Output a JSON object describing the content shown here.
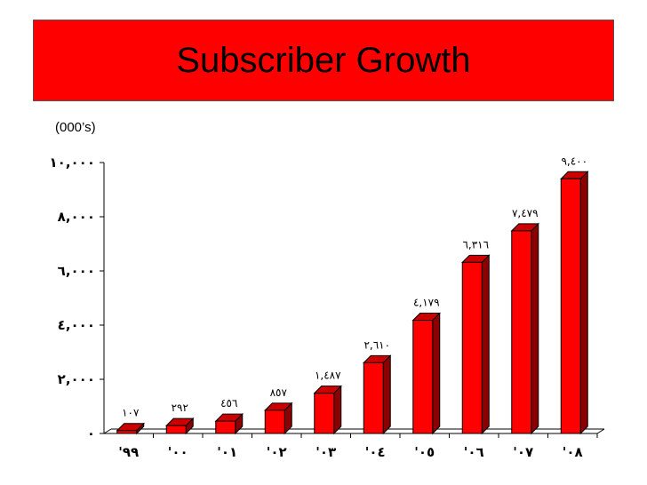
{
  "chart_data": {
    "type": "bar",
    "title": "Subscriber Growth",
    "unit_label": "(000’s)",
    "categories": [
      "'٩٩",
      "'٠٠",
      "'٠١",
      "'٠٢",
      "'٠٣",
      "'٠٤",
      "'٠٥",
      "'٠٦",
      "'٠٧",
      "'٠٨"
    ],
    "values": [
      107,
      292,
      456,
      857,
      1487,
      2610,
      4179,
      6316,
      7479,
      9400
    ],
    "value_labels": [
      "١٠٧",
      "٢٩٢",
      "٤٥٦",
      "٨٥٧",
      "١,٤٨٧",
      "٢,٦١٠",
      "٤,١٧٩",
      "٦,٣١٦",
      "٧,٤٧٩",
      "٩,٤٠٠"
    ],
    "ylim": [
      0,
      10000
    ],
    "y_ticks": [
      0,
      2000,
      4000,
      6000,
      8000,
      10000
    ],
    "y_tick_labels": [
      "٠",
      "٢,٠٠٠",
      "٤,٠٠٠",
      "٦,٠٠٠",
      "٨,٠٠٠",
      "١٠,٠٠٠"
    ],
    "grid": false,
    "colors": {
      "bar_front": "#ff0000",
      "bar_side": "#8b0000",
      "bar_top": "#cc0000",
      "banner": "#ff0000"
    }
  }
}
